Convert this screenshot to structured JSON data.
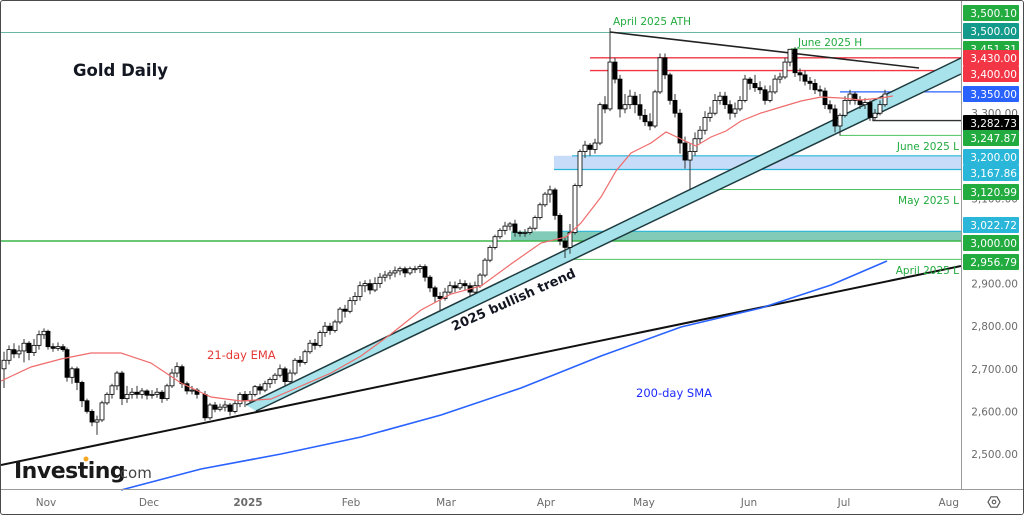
{
  "chart_data": {
    "type": "candlestick",
    "title": "Gold Daily",
    "instrument": "Gold",
    "timeframe": "Daily",
    "source_watermark": "Investing.com",
    "x_axis": {
      "tick_labels": [
        "Nov",
        "Dec",
        "2025",
        "Feb",
        "Mar",
        "Apr",
        "May",
        "Jun",
        "Jul",
        "Aug"
      ],
      "range": [
        "2024-10",
        "2025-08"
      ]
    },
    "y_axis": {
      "tick_labels": [
        "3,500.00",
        "3,400.00",
        "3,300.00",
        "3,200.00",
        "3,100.00",
        "3,000.00",
        "2,900.00",
        "2,800.00",
        "2,700.00",
        "2,600.00",
        "2,500.00"
      ],
      "range": [
        2440,
        3530
      ],
      "position": "right"
    },
    "price_labels": [
      {
        "value": "3,500.10",
        "price": 3500.1,
        "color": "#22ab3f",
        "text_color": "#ffffff"
      },
      {
        "value": "3,500.00",
        "price": 3500.0,
        "color": "#139a8a",
        "text_color": "#ffffff"
      },
      {
        "value": "3,451.31",
        "price": 3451.31,
        "color": "#22ab3f",
        "text_color": "#ffffff"
      },
      {
        "value": "3,430.00",
        "price": 3430.0,
        "color": "#f23645",
        "text_color": "#ffffff"
      },
      {
        "value": "3,400.00",
        "price": 3400.0,
        "color": "#f23645",
        "text_color": "#ffffff"
      },
      {
        "value": "3,350.00",
        "price": 3350.0,
        "color": "#2962ff",
        "text_color": "#ffffff"
      },
      {
        "value": "3,282.73",
        "price": 3282.73,
        "color": "#000000",
        "text_color": "#ffffff"
      },
      {
        "value": "3,247.87",
        "price": 3247.87,
        "color": "#22ab3f",
        "text_color": "#ffffff"
      },
      {
        "value": "3,200.00",
        "price": 3200.0,
        "color": "#29b6d8",
        "text_color": "#1a1a1a"
      },
      {
        "value": "3,167.86",
        "price": 3167.86,
        "color": "#29b6d8",
        "text_color": "#1a1a1a"
      },
      {
        "value": "3,120.99",
        "price": 3120.99,
        "color": "#22ab3f",
        "text_color": "#ffffff"
      },
      {
        "value": "3,022.72",
        "price": 3022.72,
        "color": "#29b6d8",
        "text_color": "#1a1a1a"
      },
      {
        "value": "3,000.00",
        "price": 3000.0,
        "color": "#22ab3f",
        "text_color": "#ffffff"
      },
      {
        "value": "2,956.79",
        "price": 2956.79,
        "color": "#22ab3f",
        "text_color": "#ffffff"
      }
    ],
    "horizontal_levels": [
      {
        "label": "April 2025 ATH",
        "price": 3500.1,
        "color": "#22ab3f"
      },
      {
        "label": "June 2025 H",
        "price": 3451.31,
        "color": "#22ab3f"
      },
      {
        "label": "",
        "price": 3430.0,
        "color": "#f23645"
      },
      {
        "label": "",
        "price": 3400.0,
        "color": "#f23645"
      },
      {
        "label": "",
        "price": 3350.0,
        "color": "#2962ff"
      },
      {
        "label": "",
        "price": 3282.73,
        "color": "#000000"
      },
      {
        "label": "June 2025 L",
        "price": 3247.87,
        "color": "#22ab3f"
      },
      {
        "label": "May 2025 L",
        "price": 3120.99,
        "color": "#22ab3f"
      },
      {
        "label": "April 2025 L",
        "price": 2956.79,
        "color": "#22ab3f"
      }
    ],
    "zones": [
      {
        "name": "resistance-turned-support",
        "from": 3167.86,
        "to": 3200.0,
        "color": "#bcd7f7"
      },
      {
        "name": "3000 support zone",
        "from": 3000.0,
        "to": 3022.72,
        "color": "#7fcab7"
      }
    ],
    "annotations": [
      {
        "text": "Gold Daily",
        "color": "#131722"
      },
      {
        "text": "21-day EMA",
        "color": "#e53935"
      },
      {
        "text": "200-day SMA",
        "color": "#1e2bff"
      },
      {
        "text": "2025 bullish trend",
        "color": "#131722",
        "rotation_deg": -24
      },
      {
        "text": "April 2025 ATH",
        "color": "#22ab3f"
      },
      {
        "text": "June 2025 H",
        "color": "#22ab3f"
      },
      {
        "text": "June 2025 L",
        "color": "#22ab3f"
      },
      {
        "text": "May 2025 L",
        "color": "#22ab3f"
      },
      {
        "text": "April 2025 L",
        "color": "#22ab3f"
      }
    ],
    "trendlines": [
      {
        "name": "descending resistance from ATH",
        "from": {
          "date": "2025-04-22",
          "price": 3500
        },
        "to": {
          "date": "2025-07-28",
          "price": 3413
        }
      },
      {
        "name": "long-term support",
        "from": {
          "date": "2024-10-01",
          "price": 2485
        },
        "to": {
          "date": "2025-08-01",
          "price": 2960
        }
      },
      {
        "name": "2025 bullish trend channel",
        "from": {
          "date": "2024-12-30",
          "price": 2600
        },
        "to": {
          "date": "2025-08-01",
          "price": 3395
        }
      }
    ],
    "indicators": [
      {
        "name": "21-day EMA",
        "color": "#f06b6b"
      },
      {
        "name": "200-day SMA",
        "color": "#2962ff"
      }
    ],
    "last_price": 3350,
    "grid": false,
    "legend_position": "none"
  },
  "header": {
    "title": "Gold Daily"
  },
  "labels": {
    "ema": "21-day EMA",
    "sma": "200-day SMA",
    "trend": "2025 bullish trend",
    "ath": "April 2025 ATH",
    "june_h": "June 2025 H",
    "june_l": "June 2025 L",
    "may_l": "May 2025 L",
    "april_l": "April 2025 L"
  },
  "watermark": {
    "brand": "Investing",
    "suffix": ".com"
  },
  "axis_settings_icon": "settings-hexagon-icon"
}
